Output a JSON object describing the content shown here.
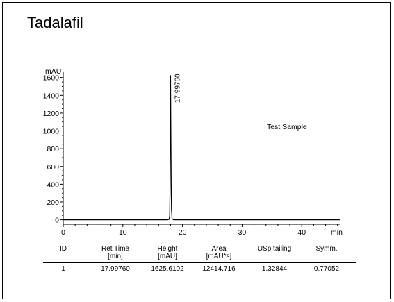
{
  "title": "Tadalafil",
  "chart_data": {
    "type": "line",
    "title": "Tadalafil",
    "xlabel": "min",
    "ylabel": "mAU",
    "xlim": [
      0,
      46.5
    ],
    "ylim": [
      -50,
      1660
    ],
    "x_ticks": [
      0,
      10,
      20,
      30,
      40
    ],
    "y_ticks": [
      0,
      200,
      400,
      600,
      800,
      1000,
      1200,
      1400,
      1600
    ],
    "peak": {
      "retention_time": 17.9976,
      "height": 1625.6102,
      "label": "17.99760"
    },
    "annotation": "Test Sample",
    "series": [
      {
        "x": [
          0,
          17.5,
          17.75,
          17.85,
          17.9,
          17.95,
          17.9976,
          18.04,
          18.1,
          18.15,
          18.25,
          18.5,
          46.5
        ],
        "y": [
          0,
          0,
          5,
          40,
          300,
          1200,
          1625.6,
          1100,
          400,
          120,
          15,
          0,
          0
        ]
      }
    ],
    "grid": false
  },
  "table": {
    "headers": [
      {
        "line1": "ID",
        "line2": ""
      },
      {
        "line1": "Ret Time",
        "line2": "[min]"
      },
      {
        "line1": "Height",
        "line2": "[mAU]"
      },
      {
        "line1": "Area",
        "line2": "[mAU*s]"
      },
      {
        "line1": "USp tailing",
        "line2": ""
      },
      {
        "line1": "Symm.",
        "line2": ""
      }
    ],
    "rows": [
      [
        "1",
        "17.99760",
        "1625.6102",
        "12414.716",
        "1.32844",
        "0.77052"
      ]
    ]
  }
}
